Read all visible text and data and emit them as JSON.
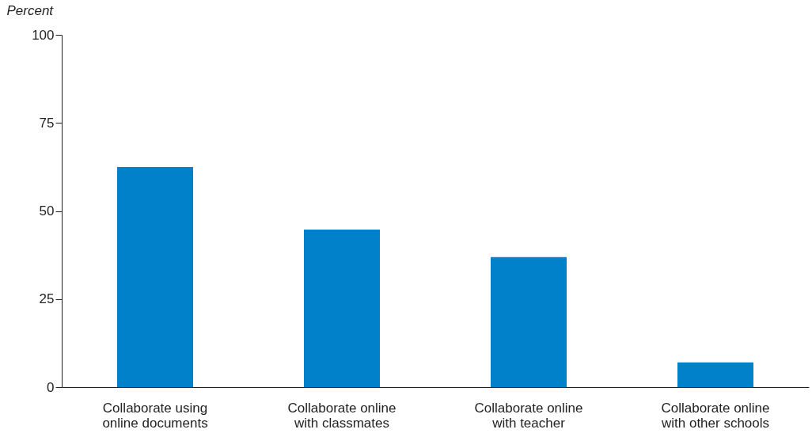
{
  "chart_data": {
    "type": "bar",
    "ylabel": "Percent",
    "categories": [
      "Collaborate using\nonline documents",
      "Collaborate online\nwith classmates",
      "Collaborate online\nwith teacher",
      "Collaborate online\nwith other schools"
    ],
    "values": [
      62.5,
      44.7,
      36.9,
      7.0
    ],
    "color": "#0081c9",
    "ylim": [
      0,
      100
    ],
    "yticks": [
      0,
      25,
      50,
      75,
      100
    ],
    "grid": false
  }
}
